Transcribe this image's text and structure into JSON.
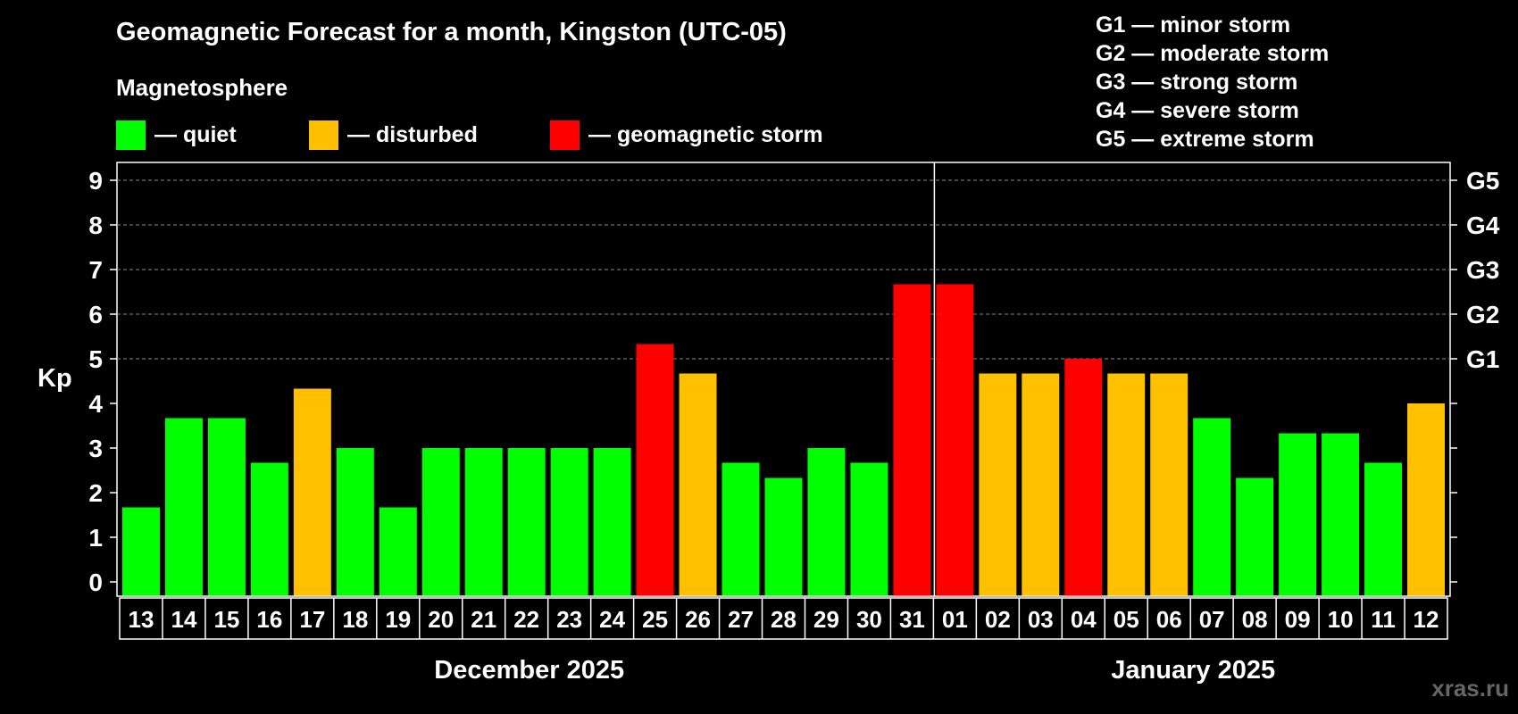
{
  "header": {
    "title": "Geomagnetic Forecast for a month, Kingston (UTC-05)",
    "subtitle": "Magnetosphere"
  },
  "legend": [
    {
      "label": "— quiet",
      "color": "#00ff00"
    },
    {
      "label": "— disturbed",
      "color": "#ffc000"
    },
    {
      "label": "— geomagnetic storm",
      "color": "#ff0000"
    }
  ],
  "g_legend": [
    "G1 — minor storm",
    "G2 — moderate storm",
    "G3 — strong storm",
    "G4 — severe storm",
    "G5 — extreme storm"
  ],
  "watermark": "xras.ru",
  "chart_data": {
    "type": "bar",
    "ylabel": "Kp",
    "ylim": [
      0,
      9
    ],
    "yticks": [
      0,
      1,
      2,
      3,
      4,
      5,
      6,
      7,
      8,
      9
    ],
    "right_labels": [
      {
        "value": 5,
        "label": "G1"
      },
      {
        "value": 6,
        "label": "G2"
      },
      {
        "value": 7,
        "label": "G3"
      },
      {
        "value": 8,
        "label": "G4"
      },
      {
        "value": 9,
        "label": "G5"
      }
    ],
    "months": [
      {
        "label": "December 2025",
        "count": 19
      },
      {
        "label": "January 2025",
        "count": 12
      }
    ],
    "categories": [
      "13",
      "14",
      "15",
      "16",
      "17",
      "18",
      "19",
      "20",
      "21",
      "22",
      "23",
      "24",
      "25",
      "26",
      "27",
      "28",
      "29",
      "30",
      "31",
      "01",
      "02",
      "03",
      "04",
      "05",
      "06",
      "07",
      "08",
      "09",
      "10",
      "11",
      "12"
    ],
    "values": [
      1.67,
      3.67,
      3.67,
      2.67,
      4.33,
      3.0,
      1.67,
      3.0,
      3.0,
      3.0,
      3.0,
      3.0,
      5.33,
      4.67,
      2.67,
      2.33,
      3.0,
      2.67,
      6.67,
      6.67,
      4.67,
      4.67,
      5.0,
      4.67,
      4.67,
      3.67,
      2.33,
      3.33,
      3.33,
      2.67,
      4.0
    ],
    "levels": [
      "quiet",
      "quiet",
      "quiet",
      "quiet",
      "disturbed",
      "quiet",
      "quiet",
      "quiet",
      "quiet",
      "quiet",
      "quiet",
      "quiet",
      "storm",
      "disturbed",
      "quiet",
      "quiet",
      "quiet",
      "quiet",
      "storm",
      "storm",
      "disturbed",
      "disturbed",
      "storm",
      "disturbed",
      "disturbed",
      "quiet",
      "quiet",
      "quiet",
      "quiet",
      "quiet",
      "disturbed"
    ],
    "level_colors": {
      "quiet": "#00ff00",
      "disturbed": "#ffc000",
      "storm": "#ff0000"
    },
    "grid": true
  }
}
